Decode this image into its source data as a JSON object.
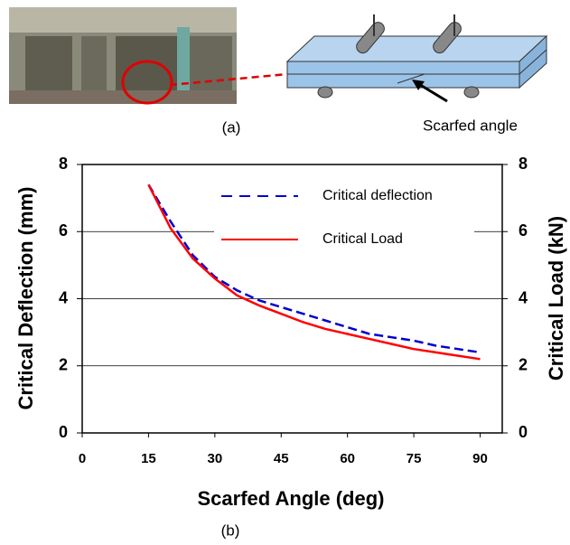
{
  "chart_data": {
    "type": "line",
    "panel_a_label": "(a)",
    "annotation": "Scarfed angle",
    "panel_b_label": "(b)",
    "x_label": "Scarfed Angle (deg)",
    "y_label": "Critical Deflection (mm)",
    "y2_label": "Critical Load (kN)",
    "x": [
      15,
      20,
      25,
      30,
      35,
      40,
      45,
      50,
      55,
      60,
      65,
      70,
      75,
      80,
      85,
      90
    ],
    "series": [
      {
        "name": "Critical deflection",
        "color": "#0000cc",
        "dashed": true,
        "values": [
          7.4,
          6.3,
          5.3,
          4.65,
          4.25,
          3.95,
          3.75,
          3.55,
          3.35,
          3.15,
          2.95,
          2.85,
          2.75,
          2.6,
          2.5,
          2.4
        ]
      },
      {
        "name": "Critical Load",
        "color": "#ff0000",
        "dashed": false,
        "axis": "y2",
        "values": [
          7.4,
          6.1,
          5.2,
          4.6,
          4.1,
          3.8,
          3.55,
          3.3,
          3.1,
          2.95,
          2.8,
          2.65,
          2.5,
          2.4,
          2.3,
          2.2
        ]
      }
    ],
    "xlim": [
      0,
      95
    ],
    "xticks": [
      0,
      15,
      30,
      45,
      60,
      75,
      90
    ],
    "ylim": [
      0,
      8
    ],
    "yticks": [
      0,
      2,
      4,
      6,
      8
    ],
    "y2lim": [
      0,
      8
    ],
    "y2ticks": [
      0,
      2,
      4,
      6,
      8
    ],
    "grid": true
  }
}
